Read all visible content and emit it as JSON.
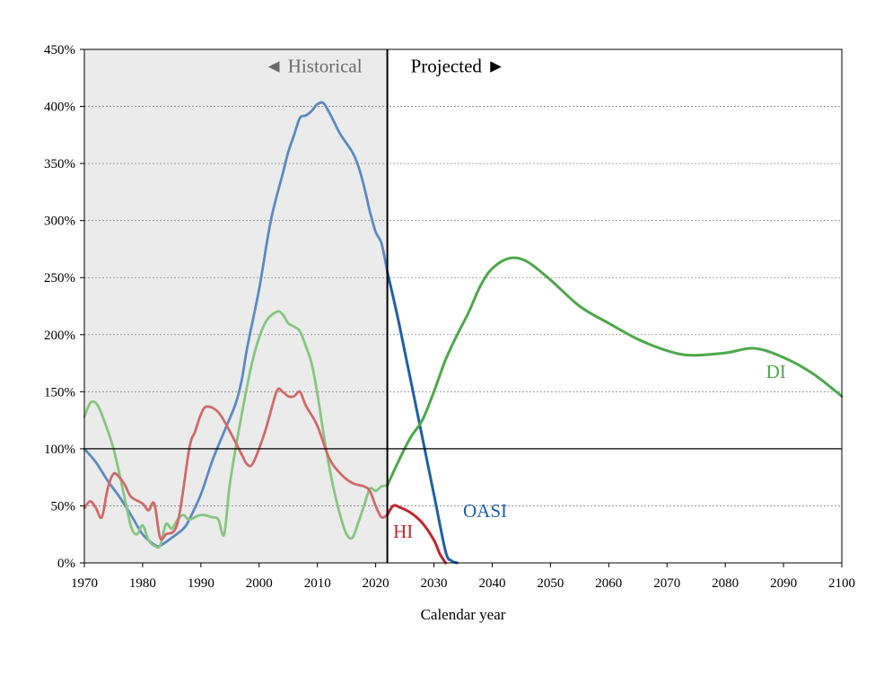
{
  "chart_data": {
    "type": "line",
    "xlabel": "Calendar year",
    "ylabel": "",
    "xlim": [
      1970,
      2100
    ],
    "ylim": [
      0,
      450
    ],
    "x_ticks": [
      1970,
      1980,
      1990,
      2000,
      2010,
      2020,
      2030,
      2040,
      2050,
      2060,
      2070,
      2080,
      2090,
      2100
    ],
    "y_ticks": [
      0,
      50,
      100,
      150,
      200,
      250,
      300,
      350,
      400,
      450
    ],
    "y_tick_labels": [
      "0%",
      "50%",
      "100%",
      "150%",
      "200%",
      "250%",
      "300%",
      "350%",
      "400%",
      "450%"
    ],
    "grid": "horizontal dashed",
    "reference_line_y": 100,
    "divider_year": 2022,
    "historical_label": "◄ Historical",
    "projected_label": "Projected ►",
    "historical_shading": "#ebebeb",
    "series": [
      {
        "name": "OASI",
        "color_hist": "#5b8ac0",
        "color_proj": "#1f5fa5",
        "historical": [
          [
            1970,
            100
          ],
          [
            1972,
            88
          ],
          [
            1974,
            72
          ],
          [
            1976,
            58
          ],
          [
            1978,
            42
          ],
          [
            1980,
            25
          ],
          [
            1982,
            16
          ],
          [
            1983,
            15
          ],
          [
            1985,
            22
          ],
          [
            1987,
            30
          ],
          [
            1988,
            38
          ],
          [
            1990,
            60
          ],
          [
            1992,
            90
          ],
          [
            1994,
            115
          ],
          [
            1996,
            140
          ],
          [
            1997,
            160
          ],
          [
            1998,
            190
          ],
          [
            2000,
            240
          ],
          [
            2002,
            300
          ],
          [
            2004,
            340
          ],
          [
            2005,
            360
          ],
          [
            2006,
            375
          ],
          [
            2007,
            390
          ],
          [
            2008,
            392
          ],
          [
            2009,
            396
          ],
          [
            2010,
            402
          ],
          [
            2011,
            403
          ],
          [
            2012,
            395
          ],
          [
            2013,
            385
          ],
          [
            2014,
            375
          ],
          [
            2016,
            360
          ],
          [
            2017,
            348
          ],
          [
            2018,
            330
          ],
          [
            2019,
            308
          ],
          [
            2020,
            290
          ],
          [
            2021,
            280
          ],
          [
            2022,
            255
          ]
        ],
        "projected": [
          [
            2022,
            255
          ],
          [
            2024,
            210
          ],
          [
            2026,
            160
          ],
          [
            2028,
            110
          ],
          [
            2030,
            60
          ],
          [
            2032,
            10
          ],
          [
            2033,
            2
          ],
          [
            2034,
            0
          ]
        ],
        "label_pos": [
          2035,
          40
        ]
      },
      {
        "name": "DI",
        "color_hist": "#86c680",
        "color_proj": "#4ea84a",
        "historical": [
          [
            1970,
            128
          ],
          [
            1971,
            140
          ],
          [
            1972,
            140
          ],
          [
            1973,
            130
          ],
          [
            1975,
            100
          ],
          [
            1977,
            55
          ],
          [
            1978,
            32
          ],
          [
            1979,
            25
          ],
          [
            1980,
            33
          ],
          [
            1981,
            20
          ],
          [
            1982,
            15
          ],
          [
            1983,
            15
          ],
          [
            1984,
            34
          ],
          [
            1985,
            30
          ],
          [
            1986,
            38
          ],
          [
            1987,
            42
          ],
          [
            1988,
            38
          ],
          [
            1990,
            42
          ],
          [
            1992,
            40
          ],
          [
            1993,
            38
          ],
          [
            1994,
            25
          ],
          [
            1995,
            70
          ],
          [
            1997,
            130
          ],
          [
            1999,
            180
          ],
          [
            2001,
            210
          ],
          [
            2003,
            220
          ],
          [
            2004,
            218
          ],
          [
            2005,
            210
          ],
          [
            2006,
            207
          ],
          [
            2007,
            203
          ],
          [
            2008,
            190
          ],
          [
            2009,
            175
          ],
          [
            2010,
            148
          ],
          [
            2011,
            115
          ],
          [
            2012,
            85
          ],
          [
            2013,
            60
          ],
          [
            2014,
            40
          ],
          [
            2015,
            25
          ],
          [
            2016,
            22
          ],
          [
            2017,
            35
          ],
          [
            2018,
            50
          ],
          [
            2019,
            65
          ],
          [
            2020,
            63
          ],
          [
            2021,
            67
          ],
          [
            2022,
            68
          ]
        ],
        "projected": [
          [
            2022,
            68
          ],
          [
            2024,
            90
          ],
          [
            2026,
            110
          ],
          [
            2028,
            125
          ],
          [
            2030,
            150
          ],
          [
            2032,
            178
          ],
          [
            2034,
            200
          ],
          [
            2036,
            220
          ],
          [
            2038,
            243
          ],
          [
            2040,
            258
          ],
          [
            2043,
            267
          ],
          [
            2046,
            264
          ],
          [
            2050,
            248
          ],
          [
            2055,
            225
          ],
          [
            2060,
            210
          ],
          [
            2065,
            196
          ],
          [
            2070,
            186
          ],
          [
            2074,
            182
          ],
          [
            2080,
            184
          ],
          [
            2085,
            188
          ],
          [
            2090,
            180
          ],
          [
            2095,
            166
          ],
          [
            2100,
            146
          ]
        ],
        "label_pos": [
          2087,
          162
        ]
      },
      {
        "name": "HI",
        "color_hist": "#d06a6a",
        "color_proj": "#c0272d",
        "historical": [
          [
            1970,
            48
          ],
          [
            1971,
            54
          ],
          [
            1972,
            48
          ],
          [
            1973,
            40
          ],
          [
            1974,
            65
          ],
          [
            1975,
            78
          ],
          [
            1976,
            75
          ],
          [
            1977,
            68
          ],
          [
            1978,
            58
          ],
          [
            1980,
            52
          ],
          [
            1981,
            46
          ],
          [
            1982,
            52
          ],
          [
            1983,
            22
          ],
          [
            1984,
            25
          ],
          [
            1986,
            35
          ],
          [
            1988,
            100
          ],
          [
            1989,
            115
          ],
          [
            1990,
            130
          ],
          [
            1991,
            137
          ],
          [
            1993,
            132
          ],
          [
            1995,
            115
          ],
          [
            1997,
            95
          ],
          [
            1998,
            86
          ],
          [
            1999,
            88
          ],
          [
            2001,
            115
          ],
          [
            2003,
            150
          ],
          [
            2004,
            150
          ],
          [
            2005,
            146
          ],
          [
            2006,
            146
          ],
          [
            2007,
            150
          ],
          [
            2008,
            138
          ],
          [
            2010,
            120
          ],
          [
            2012,
            92
          ],
          [
            2014,
            78
          ],
          [
            2016,
            70
          ],
          [
            2018,
            67
          ],
          [
            2019,
            63
          ],
          [
            2020,
            50
          ],
          [
            2021,
            40
          ],
          [
            2022,
            42
          ]
        ],
        "projected": [
          [
            2022,
            42
          ],
          [
            2023,
            50
          ],
          [
            2024,
            49
          ],
          [
            2026,
            44
          ],
          [
            2028,
            35
          ],
          [
            2030,
            20
          ],
          [
            2031,
            8
          ],
          [
            2032,
            0
          ]
        ],
        "label_pos": [
          2023,
          22
        ]
      }
    ]
  }
}
